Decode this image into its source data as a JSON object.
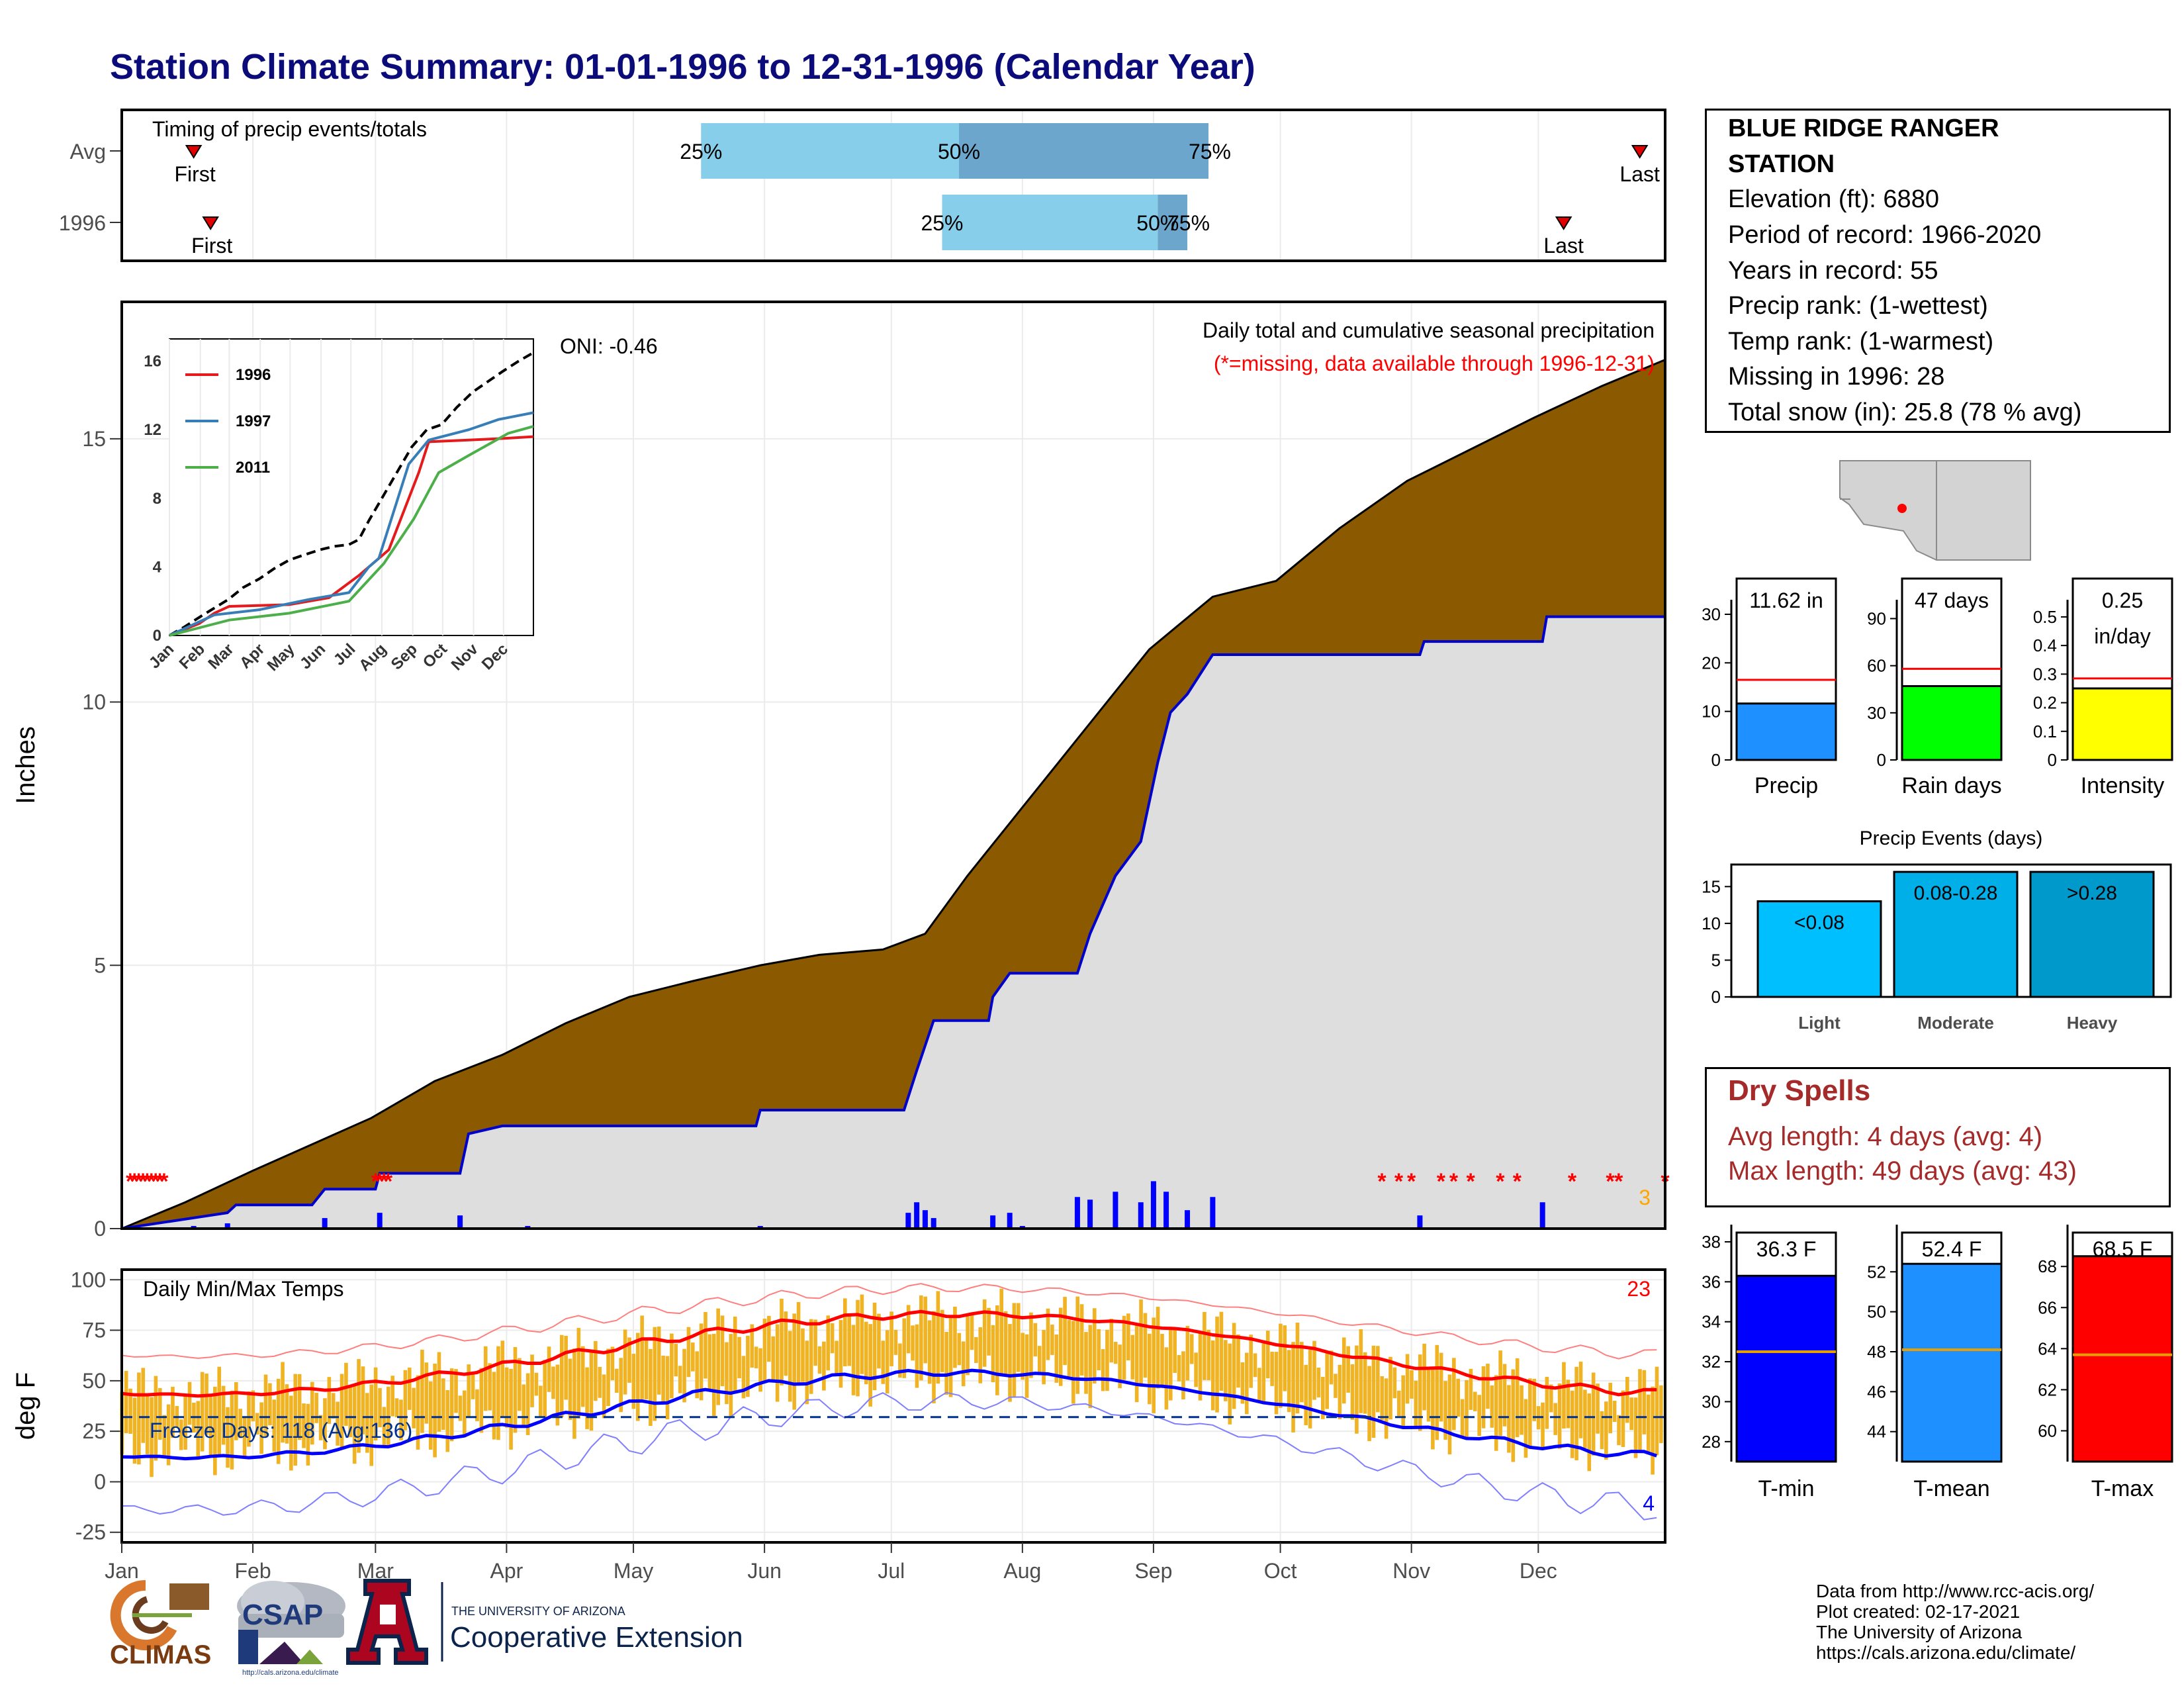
{
  "title": "Station Climate Summary: 01-01-1996 to 12-31-1996 (Calendar Year)",
  "timing": {
    "label": "Timing of precip events/totals",
    "rows": [
      {
        "name": "Avg",
        "first_doy": 17,
        "last_doy": 359,
        "p25_doy": 137,
        "p50_doy": 198,
        "p75_doy": 257,
        "p75_label": "75%"
      },
      {
        "name": "1996",
        "first_doy": 21,
        "last_doy": 341,
        "p25_doy": 194,
        "p50_doy": 245,
        "p75_doy": 252,
        "p75_label": "75%"
      }
    ],
    "labels": {
      "first": "First",
      "last": "Last",
      "p25": "25%",
      "p50": "50%"
    }
  },
  "chart_data": {
    "type": "area",
    "title": "Daily total and cumulative seasonal precipitation",
    "subtitle": "(*=missing, data available through 1996-12-31)",
    "oni": "ONI: -0.46",
    "ylabel": "Inches",
    "ylim": [
      0,
      17.6
    ],
    "yticks": [
      0,
      5,
      10,
      15
    ],
    "months": [
      "Jan",
      "Feb",
      "Mar",
      "Apr",
      "May",
      "Jun",
      "Jul",
      "Aug",
      "Sep",
      "Oct",
      "Nov",
      "Dec"
    ],
    "missing_count": "3",
    "avg_cumulative": [
      [
        0,
        0
      ],
      [
        15,
        0.5
      ],
      [
        31,
        1.1
      ],
      [
        45,
        1.6
      ],
      [
        59,
        2.1
      ],
      [
        74,
        2.8
      ],
      [
        90,
        3.3
      ],
      [
        105,
        3.9
      ],
      [
        120,
        4.4
      ],
      [
        135,
        4.7
      ],
      [
        151,
        5.0
      ],
      [
        165,
        5.2
      ],
      [
        180,
        5.3
      ],
      [
        190,
        5.6
      ],
      [
        200,
        6.7
      ],
      [
        212,
        7.9
      ],
      [
        225,
        9.2
      ],
      [
        243,
        11.0
      ],
      [
        258,
        12.0
      ],
      [
        273,
        12.3
      ],
      [
        288,
        13.3
      ],
      [
        304,
        14.2
      ],
      [
        319,
        14.8
      ],
      [
        334,
        15.4
      ],
      [
        350,
        16.0
      ],
      [
        365,
        16.5
      ]
    ],
    "year_cumulative": [
      [
        0,
        0
      ],
      [
        25,
        0.3
      ],
      [
        27,
        0.45
      ],
      [
        45,
        0.45
      ],
      [
        48,
        0.75
      ],
      [
        60,
        0.75
      ],
      [
        61,
        1.05
      ],
      [
        80,
        1.05
      ],
      [
        82,
        1.8
      ],
      [
        90,
        1.95
      ],
      [
        150,
        1.95
      ],
      [
        151,
        2.25
      ],
      [
        185,
        2.25
      ],
      [
        186,
        2.5
      ],
      [
        188,
        3.0
      ],
      [
        192,
        3.95
      ],
      [
        205,
        3.95
      ],
      [
        206,
        4.4
      ],
      [
        210,
        4.85
      ],
      [
        226,
        4.85
      ],
      [
        229,
        5.6
      ],
      [
        235,
        6.7
      ],
      [
        241,
        7.35
      ],
      [
        245,
        8.85
      ],
      [
        248,
        9.8
      ],
      [
        252,
        10.15
      ],
      [
        258,
        10.9
      ],
      [
        307,
        10.9
      ],
      [
        308,
        11.15
      ],
      [
        336,
        11.15
      ],
      [
        337,
        11.62
      ],
      [
        365,
        11.62
      ]
    ],
    "daily_bars": [
      [
        17,
        0.05
      ],
      [
        25,
        0.1
      ],
      [
        48,
        0.2
      ],
      [
        61,
        0.3
      ],
      [
        80,
        0.25
      ],
      [
        96,
        0.05
      ],
      [
        151,
        0.05
      ],
      [
        186,
        0.3
      ],
      [
        188,
        0.5
      ],
      [
        190,
        0.35
      ],
      [
        192,
        0.2
      ],
      [
        206,
        0.25
      ],
      [
        210,
        0.3
      ],
      [
        213,
        0.05
      ],
      [
        226,
        0.6
      ],
      [
        229,
        0.55
      ],
      [
        235,
        0.7
      ],
      [
        241,
        0.5
      ],
      [
        244,
        0.9
      ],
      [
        247,
        0.7
      ],
      [
        252,
        0.35
      ],
      [
        258,
        0.6
      ],
      [
        307,
        0.25
      ],
      [
        336,
        0.5
      ]
    ],
    "missing_days": [
      2,
      3,
      4,
      5,
      6,
      7,
      8,
      9,
      10,
      60,
      61,
      62,
      63,
      298,
      302,
      305,
      312,
      315,
      319,
      326,
      330,
      343,
      352,
      354,
      365
    ],
    "insert": {
      "series": [
        {
          "name": "1996",
          "color": "#e41a1c"
        },
        {
          "name": "1997",
          "color": "#377eb8"
        },
        {
          "name": "2011",
          "color": "#4daf4a"
        }
      ],
      "yticks": [
        0,
        4,
        8,
        12,
        16
      ],
      "months": [
        "Jan",
        "Feb",
        "Mar",
        "Apr",
        "May",
        "Jun",
        "Jul",
        "Aug",
        "Sep",
        "Oct",
        "Nov",
        "Dec"
      ]
    }
  },
  "temps": {
    "title": "Daily Min/Max Temps",
    "ylabel": "deg F",
    "yticks": [
      -25,
      0,
      25,
      50,
      75,
      100
    ],
    "freeze_text": "Freeze Days: 118 (Avg:136)",
    "freeze_line": 32,
    "max_count": "23",
    "min_count": "4",
    "colors": {
      "max": "#ff0000",
      "min": "#0000ff",
      "range": "#f0b323"
    }
  },
  "station": {
    "name_line1": "BLUE RIDGE RANGER",
    "name_line2": "STATION",
    "lines": [
      "Elevation (ft): 6880",
      "Period of record: 1966-2020",
      "Years in record: 55",
      "Precip rank:  (1-wettest)",
      "Temp rank:  (1-warmest)",
      "Missing in 1996: 28",
      "Total snow (in): 25.8 (78 % avg)"
    ]
  },
  "mini_bars": [
    {
      "label": "Precip",
      "value_label": "11.62 in",
      "value": 11.62,
      "avg": 16.5,
      "ymax": 33,
      "yticks": [
        0,
        10,
        20,
        30
      ],
      "color": "#1e90ff"
    },
    {
      "label": "Rain days",
      "value_label": "47 days",
      "value": 47,
      "avg": 58,
      "ymax": 102,
      "yticks": [
        0,
        30,
        60,
        90
      ],
      "color": "#00ff00"
    },
    {
      "label": "Intensity",
      "value_label": "0.25 in/day",
      "value": 0.25,
      "avg": 0.285,
      "ymax": 0.56,
      "yticks": [
        0.0,
        0.1,
        0.2,
        0.3,
        0.4,
        0.5
      ],
      "color": "#ffff00"
    }
  ],
  "events": {
    "title": "Precip Events (days)",
    "yticks": [
      0,
      5,
      10,
      15
    ],
    "ymax": 18,
    "bars": [
      {
        "label": "Light",
        "range": "<0.08",
        "value": 13,
        "color": "#00bfff"
      },
      {
        "label": "Moderate",
        "range": "0.08-0.28",
        "value": 17,
        "color": "#00aee8"
      },
      {
        "label": "Heavy",
        "range": ">0.28",
        "value": 17,
        "color": "#0099cc"
      }
    ]
  },
  "dry": {
    "title": "Dry Spells",
    "avg_line": "Avg length: 4 days (avg: 4)",
    "max_line": "Max length: 49 days (avg: 43)"
  },
  "temp_bars": [
    {
      "label": "T-min",
      "value_label": "36.3 F",
      "value": 36.3,
      "avg": 32.5,
      "ymin": 27,
      "ymax": 38,
      "yticks": [
        28,
        30,
        32,
        34,
        36,
        38
      ],
      "color": "#0000ff"
    },
    {
      "label": "T-mean",
      "value_label": "52.4 F",
      "value": 52.4,
      "avg": 48.1,
      "ymin": 42.5,
      "ymax": 53.5,
      "yticks": [
        44,
        46,
        48,
        50,
        52
      ],
      "color": "#1e90ff"
    },
    {
      "label": "T-max",
      "value_label": "68.5 F",
      "value": 68.5,
      "avg": 63.7,
      "ymin": 58.5,
      "ymax": 69.2,
      "yticks": [
        60,
        62,
        64,
        66,
        68
      ],
      "color": "#ff0000"
    }
  ],
  "credits": [
    "Data from http://www.rcc-acis.org/",
    "Plot created: 02-17-2021",
    "The University of Arizona",
    "https://cals.arizona.edu/climate/"
  ],
  "logos": {
    "climas": "CLIMAS",
    "csap": "CSAP",
    "csap_url": "http://cals.arizona.edu/climate",
    "ua_small": "THE UNIVERSITY OF ARIZONA",
    "ua_large": "Cooperative Extension"
  }
}
